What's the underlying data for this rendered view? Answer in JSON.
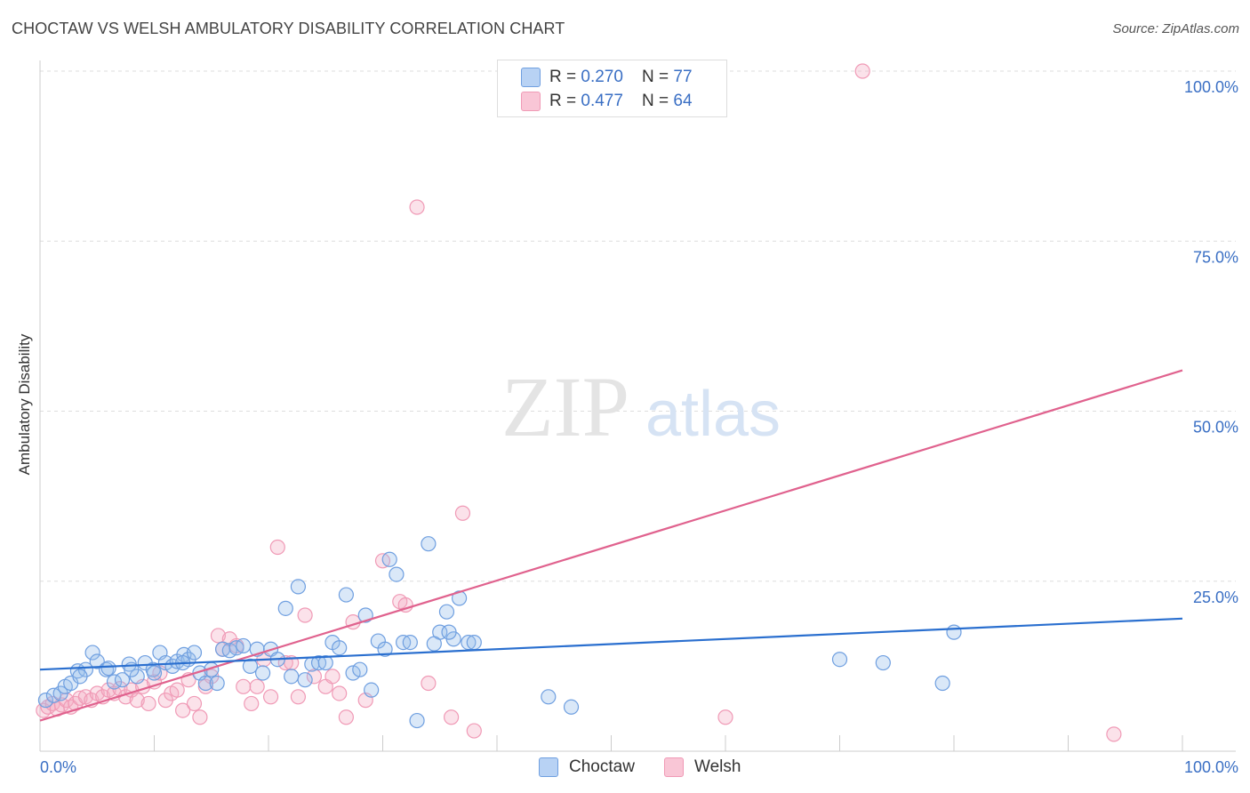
{
  "header": {
    "title": "CHOCTAW VS WELSH AMBULATORY DISABILITY CORRELATION CHART",
    "source": "Source: ZipAtlas.com"
  },
  "watermark": {
    "zip": "ZIP",
    "atlas": "atlas"
  },
  "legend": {
    "r_label": "R = ",
    "n_label": "N = ",
    "choctaw_r": "0.270",
    "choctaw_n": "77",
    "welsh_r": "0.477",
    "welsh_n": "64"
  },
  "bottom_legend": {
    "choctaw": "Choctaw",
    "welsh": "Welsh"
  },
  "chart_data": {
    "type": "scatter",
    "title": "CHOCTAW VS WELSH AMBULATORY DISABILITY CORRELATION CHART",
    "xlabel": "",
    "ylabel": "Ambulatory Disability",
    "xlim": [
      0,
      100
    ],
    "ylim": [
      0,
      100
    ],
    "x_tick_labels": [
      "0.0%",
      "100.0%"
    ],
    "y_tick_labels": [
      "25.0%",
      "50.0%",
      "75.0%",
      "100.0%"
    ],
    "y_ticks": [
      25,
      50,
      75,
      100
    ],
    "grid": true,
    "legend_position": "top-center",
    "colors": {
      "choctaw": "#6f9fe0",
      "choctaw_line": "#2a6fcf",
      "welsh": "#f09ab6",
      "welsh_line": "#e0628e",
      "axis_text": "#3a6fc4"
    },
    "series": [
      {
        "name": "Choctaw",
        "r": 0.27,
        "n": 77,
        "trend": {
          "x": [
            0,
            100
          ],
          "y": [
            12.0,
            19.5
          ]
        },
        "points": [
          [
            0.5,
            7.5
          ],
          [
            1.2,
            8.2
          ],
          [
            1.8,
            8.5
          ],
          [
            2.2,
            9.5
          ],
          [
            2.7,
            10.0
          ],
          [
            3.3,
            11.8
          ],
          [
            4.0,
            12.0
          ],
          [
            4.6,
            14.5
          ],
          [
            5.0,
            13.2
          ],
          [
            5.8,
            12.0
          ],
          [
            6.5,
            10.2
          ],
          [
            7.2,
            10.5
          ],
          [
            7.8,
            12.8
          ],
          [
            8.5,
            11.0
          ],
          [
            9.2,
            13.0
          ],
          [
            9.9,
            12.0
          ],
          [
            10.5,
            14.5
          ],
          [
            11.0,
            13.0
          ],
          [
            11.6,
            12.5
          ],
          [
            12.0,
            13.2
          ],
          [
            12.6,
            14.2
          ],
          [
            13.0,
            13.5
          ],
          [
            13.5,
            14.5
          ],
          [
            14.0,
            11.5
          ],
          [
            14.5,
            10.0
          ],
          [
            15.0,
            12.0
          ],
          [
            15.5,
            10.0
          ],
          [
            16.0,
            15.0
          ],
          [
            16.6,
            14.8
          ],
          [
            17.2,
            15.2
          ],
          [
            17.8,
            15.5
          ],
          [
            18.4,
            12.5
          ],
          [
            19.0,
            15.0
          ],
          [
            19.5,
            11.5
          ],
          [
            20.2,
            15.0
          ],
          [
            20.8,
            13.5
          ],
          [
            21.5,
            21.0
          ],
          [
            22.0,
            11.0
          ],
          [
            22.6,
            24.2
          ],
          [
            23.2,
            10.5
          ],
          [
            23.8,
            12.8
          ],
          [
            24.4,
            13.0
          ],
          [
            25.0,
            13.0
          ],
          [
            25.6,
            16.0
          ],
          [
            26.2,
            15.2
          ],
          [
            26.8,
            23.0
          ],
          [
            27.4,
            11.5
          ],
          [
            28.0,
            12.0
          ],
          [
            28.5,
            20.0
          ],
          [
            29.0,
            9.0
          ],
          [
            29.6,
            16.2
          ],
          [
            30.2,
            15.0
          ],
          [
            30.6,
            28.2
          ],
          [
            31.2,
            26.0
          ],
          [
            31.8,
            16.0
          ],
          [
            32.4,
            16.0
          ],
          [
            33.0,
            4.5
          ],
          [
            34.0,
            30.5
          ],
          [
            35.0,
            17.5
          ],
          [
            35.6,
            20.5
          ],
          [
            36.2,
            16.5
          ],
          [
            36.7,
            22.5
          ],
          [
            37.5,
            16.0
          ],
          [
            38.0,
            16.0
          ],
          [
            34.5,
            15.8
          ],
          [
            35.8,
            17.5
          ],
          [
            44.5,
            8.0
          ],
          [
            46.5,
            6.5
          ],
          [
            70.0,
            13.5
          ],
          [
            73.8,
            13.0
          ],
          [
            79.0,
            10.0
          ],
          [
            80.0,
            17.5
          ],
          [
            3.5,
            11.0
          ],
          [
            6.0,
            12.2
          ],
          [
            8.0,
            12.0
          ],
          [
            10.0,
            11.5
          ],
          [
            12.5,
            13.0
          ]
        ]
      },
      {
        "name": "Welsh",
        "r": 0.477,
        "n": 64,
        "trend": {
          "x": [
            0,
            100
          ],
          "y": [
            4.5,
            56.0
          ]
        },
        "points": [
          [
            0.3,
            6.0
          ],
          [
            0.7,
            6.5
          ],
          [
            1.1,
            7.0
          ],
          [
            1.5,
            6.2
          ],
          [
            1.9,
            6.8
          ],
          [
            2.3,
            7.5
          ],
          [
            2.7,
            6.5
          ],
          [
            3.1,
            7.0
          ],
          [
            3.5,
            7.8
          ],
          [
            4.0,
            8.0
          ],
          [
            4.5,
            7.5
          ],
          [
            5.0,
            8.5
          ],
          [
            5.5,
            8.0
          ],
          [
            6.0,
            9.0
          ],
          [
            6.5,
            8.5
          ],
          [
            7.0,
            9.2
          ],
          [
            7.5,
            8.0
          ],
          [
            8.0,
            9.0
          ],
          [
            8.5,
            7.5
          ],
          [
            9.0,
            9.5
          ],
          [
            9.5,
            7.0
          ],
          [
            10.0,
            10.2
          ],
          [
            10.5,
            11.5
          ],
          [
            11.0,
            7.5
          ],
          [
            11.5,
            8.5
          ],
          [
            12.0,
            9.0
          ],
          [
            12.5,
            6.0
          ],
          [
            13.0,
            10.5
          ],
          [
            13.5,
            7.0
          ],
          [
            14.0,
            5.0
          ],
          [
            14.5,
            9.5
          ],
          [
            15.0,
            11.0
          ],
          [
            15.6,
            17.0
          ],
          [
            16.0,
            15.0
          ],
          [
            16.6,
            16.5
          ],
          [
            17.2,
            15.5
          ],
          [
            17.8,
            9.5
          ],
          [
            18.5,
            7.0
          ],
          [
            19.0,
            9.5
          ],
          [
            19.6,
            13.5
          ],
          [
            20.2,
            8.0
          ],
          [
            20.8,
            30.0
          ],
          [
            21.5,
            13.0
          ],
          [
            22.0,
            13.0
          ],
          [
            22.6,
            8.0
          ],
          [
            23.2,
            20.0
          ],
          [
            24.0,
            11.0
          ],
          [
            25.0,
            9.5
          ],
          [
            25.6,
            11.0
          ],
          [
            26.2,
            8.5
          ],
          [
            26.8,
            5.0
          ],
          [
            27.4,
            19.0
          ],
          [
            28.5,
            7.5
          ],
          [
            30.0,
            28.0
          ],
          [
            31.5,
            22.0
          ],
          [
            32.0,
            21.5
          ],
          [
            33.0,
            80.0
          ],
          [
            34.0,
            10.0
          ],
          [
            36.0,
            5.0
          ],
          [
            37.0,
            35.0
          ],
          [
            38.0,
            3.0
          ],
          [
            60.0,
            5.0
          ],
          [
            72.0,
            100.0
          ],
          [
            94.0,
            2.5
          ]
        ]
      }
    ]
  }
}
